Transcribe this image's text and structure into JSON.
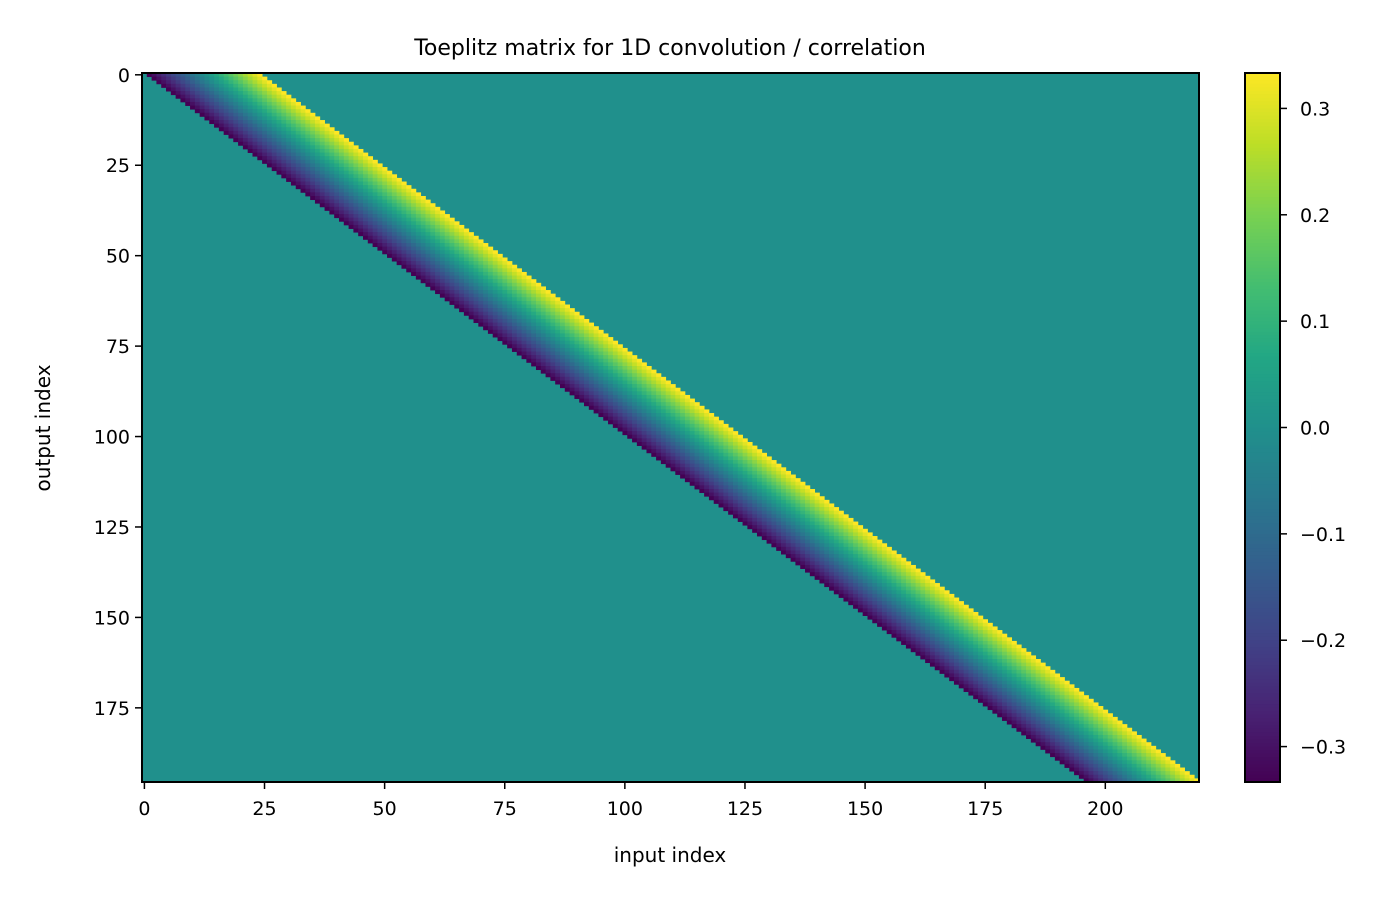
{
  "chart_data": {
    "type": "heatmap",
    "title": "Toeplitz matrix for 1D convolution / correlation",
    "xlabel": "input index",
    "ylabel": "output index",
    "n_rows": 196,
    "n_cols": 220,
    "band_start_offset": 1,
    "band_values": [
      -0.3333,
      -0.3043,
      -0.2754,
      -0.2464,
      -0.2174,
      -0.1884,
      -0.1594,
      -0.1304,
      -0.1014,
      -0.0725,
      -0.0435,
      -0.0145,
      0.0145,
      0.0435,
      0.0725,
      0.1014,
      0.1304,
      0.1594,
      0.1884,
      0.2174,
      0.2464,
      0.2754,
      0.3043,
      0.3333
    ],
    "background_value": 0.0,
    "colormap": "viridis",
    "clim": [
      -0.3333,
      0.3333
    ],
    "xticks": [
      0,
      25,
      50,
      75,
      100,
      125,
      150,
      175,
      200
    ],
    "xtick_labels": [
      "0",
      "25",
      "50",
      "75",
      "100",
      "125",
      "150",
      "175",
      "200"
    ],
    "yticks": [
      0,
      25,
      50,
      75,
      100,
      125,
      150,
      175
    ],
    "ytick_labels": [
      "0",
      "25",
      "50",
      "75",
      "100",
      "125",
      "150",
      "175"
    ],
    "colorbar_ticks": [
      0.3,
      0.2,
      0.1,
      0.0,
      -0.1,
      -0.2,
      -0.3
    ],
    "colorbar_tick_labels": [
      "0.3",
      "0.2",
      "0.1",
      "0.0",
      "−0.1",
      "−0.2",
      "−0.3"
    ],
    "grid": false,
    "legend": "none"
  }
}
